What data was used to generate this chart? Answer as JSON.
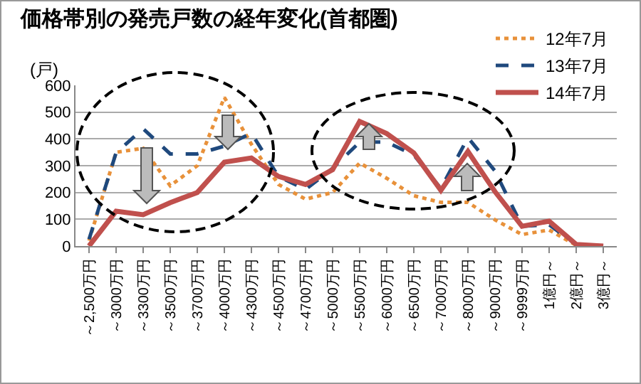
{
  "chart_data": {
    "type": "line",
    "title": "価格帯別の発売戸数の経年変化(首都圏)",
    "ylabel": "(戸)",
    "categories": [
      "～2,500万円",
      "～3000万円",
      "～3300万円",
      "～3500万円",
      "～3700万円",
      "～4000万円",
      "～4300万円",
      "～4500万円",
      "～4700万円",
      "～5000万円",
      "～5500万円",
      "～6000万円",
      "～6500万円",
      "～7000万円",
      "～8000万円",
      "～9000万円",
      "～9999万円",
      "1億円～",
      "2億円～",
      "3億円～"
    ],
    "series": [
      {
        "name": "12年7月",
        "color": "#e8913a",
        "line_style": "dotted",
        "values": [
          20,
          350,
          365,
          225,
          300,
          555,
          380,
          230,
          175,
          200,
          310,
          253,
          188,
          163,
          163,
          98,
          43,
          60,
          3,
          0
        ]
      },
      {
        "name": "13年7月",
        "color": "#1f497d",
        "line_style": "dashed",
        "values": [
          25,
          348,
          438,
          344,
          344,
          373,
          421,
          260,
          211,
          290,
          388,
          388,
          340,
          215,
          405,
          280,
          74,
          80,
          5,
          0
        ]
      },
      {
        "name": "14年7月",
        "color": "#c0504d",
        "line_style": "solid",
        "values": [
          0,
          130,
          117,
          162,
          200,
          313,
          329,
          260,
          230,
          285,
          465,
          420,
          348,
          208,
          353,
          203,
          74,
          93,
          6,
          0
        ]
      }
    ],
    "ylim": [
      0,
      600
    ],
    "yticks": [
      0,
      100,
      200,
      300,
      400,
      500,
      600
    ],
    "grid": "y",
    "legend": "top right",
    "marker": "none"
  }
}
